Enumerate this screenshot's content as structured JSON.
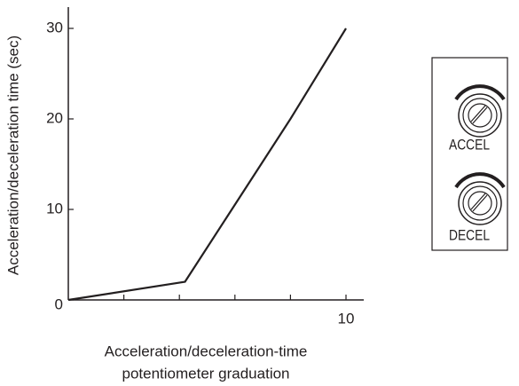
{
  "chart_data": {
    "type": "line",
    "ylabel": "Acceleration/deceleration time (sec)",
    "xlabel": [
      "Acceleration/deceleration-time",
      "potentiometer graduation"
    ],
    "x": [
      0,
      4.2,
      8,
      10
    ],
    "series": [
      {
        "color": "#231f20",
        "values": [
          0,
          2,
          20,
          30
        ]
      }
    ],
    "xlim": [
      0,
      10
    ],
    "ylim": [
      0,
      30
    ],
    "xticks": [
      10
    ],
    "x_minor_ticks": [
      2,
      4,
      6,
      8
    ],
    "yticks": [
      0,
      10,
      20,
      30
    ],
    "grid": false
  },
  "panel": {
    "labels": [
      "ACCEL",
      "DECEL"
    ]
  }
}
